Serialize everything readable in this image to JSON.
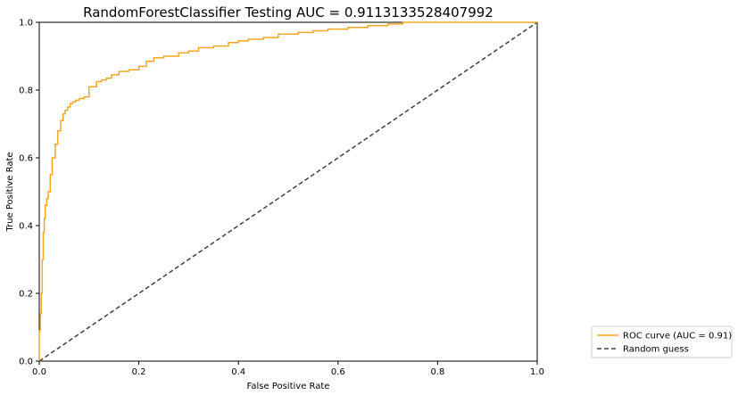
{
  "chart_data": {
    "type": "line",
    "title": "RandomForestClassifier Testing AUC = 0.9113133528407992",
    "xlabel": "False Positive Rate",
    "ylabel": "True Positive Rate",
    "xlim": [
      0,
      1
    ],
    "ylim": [
      0,
      1
    ],
    "xticks": [
      "0.0",
      "0.2",
      "0.4",
      "0.6",
      "0.8",
      "1.0"
    ],
    "yticks": [
      "0.0",
      "0.2",
      "0.4",
      "0.6",
      "0.8",
      "1.0"
    ],
    "grid": false,
    "legend_position": "outside-lower-right",
    "series": [
      {
        "name": "ROC curve (AUC = 0.91)",
        "color": "#f5a623",
        "style": "solid",
        "x": [
          0.0,
          0.0,
          0.002,
          0.002,
          0.004,
          0.004,
          0.006,
          0.006,
          0.008,
          0.008,
          0.01,
          0.01,
          0.012,
          0.012,
          0.015,
          0.015,
          0.018,
          0.018,
          0.022,
          0.022,
          0.026,
          0.026,
          0.032,
          0.032,
          0.037,
          0.037,
          0.043,
          0.043,
          0.048,
          0.048,
          0.052,
          0.052,
          0.057,
          0.057,
          0.062,
          0.062,
          0.067,
          0.067,
          0.073,
          0.073,
          0.08,
          0.08,
          0.09,
          0.09,
          0.1,
          0.1,
          0.115,
          0.115,
          0.125,
          0.125,
          0.135,
          0.135,
          0.145,
          0.145,
          0.16,
          0.16,
          0.18,
          0.18,
          0.2,
          0.2,
          0.215,
          0.215,
          0.23,
          0.23,
          0.25,
          0.25,
          0.28,
          0.28,
          0.3,
          0.3,
          0.32,
          0.32,
          0.35,
          0.35,
          0.38,
          0.38,
          0.4,
          0.4,
          0.42,
          0.42,
          0.45,
          0.45,
          0.48,
          0.48,
          0.52,
          0.52,
          0.55,
          0.55,
          0.58,
          0.58,
          0.62,
          0.62,
          0.66,
          0.66,
          0.7,
          0.7,
          0.73,
          0.73,
          1.0
        ],
        "y": [
          0.0,
          0.09,
          0.09,
          0.14,
          0.14,
          0.2,
          0.2,
          0.3,
          0.3,
          0.38,
          0.38,
          0.42,
          0.42,
          0.46,
          0.46,
          0.48,
          0.48,
          0.5,
          0.5,
          0.55,
          0.55,
          0.6,
          0.6,
          0.64,
          0.64,
          0.68,
          0.68,
          0.71,
          0.71,
          0.73,
          0.73,
          0.74,
          0.74,
          0.75,
          0.75,
          0.76,
          0.76,
          0.765,
          0.765,
          0.77,
          0.77,
          0.775,
          0.775,
          0.78,
          0.78,
          0.81,
          0.81,
          0.825,
          0.825,
          0.83,
          0.83,
          0.835,
          0.835,
          0.845,
          0.845,
          0.855,
          0.855,
          0.86,
          0.86,
          0.87,
          0.87,
          0.885,
          0.885,
          0.895,
          0.895,
          0.9,
          0.9,
          0.91,
          0.91,
          0.915,
          0.915,
          0.925,
          0.925,
          0.93,
          0.93,
          0.94,
          0.94,
          0.945,
          0.945,
          0.95,
          0.95,
          0.955,
          0.955,
          0.965,
          0.965,
          0.97,
          0.97,
          0.975,
          0.975,
          0.98,
          0.98,
          0.985,
          0.985,
          0.99,
          0.99,
          0.995,
          0.995,
          1.0,
          1.0
        ]
      },
      {
        "name": "Random guess",
        "color": "#404040",
        "style": "dashed",
        "x": [
          0,
          1
        ],
        "y": [
          0,
          1
        ]
      }
    ]
  }
}
